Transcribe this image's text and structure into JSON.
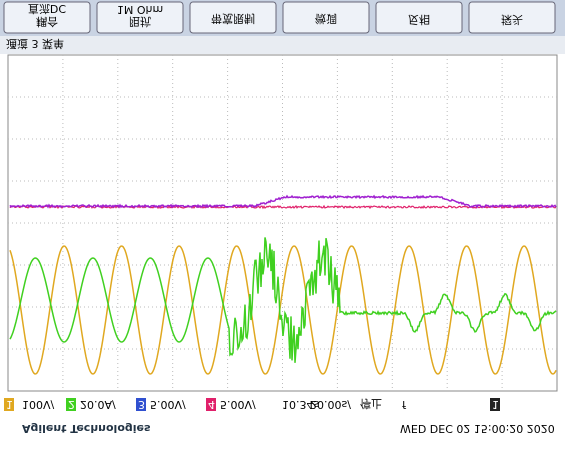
{
  "softkeys": [
    [
      "直流DC",
      "耦合"
    ],
    [
      "1M Ohm",
      "阻抗"
    ],
    [
      "带宽限制"
    ],
    [
      "微调"
    ],
    [
      "反相"
    ],
    [
      "探头"
    ]
  ],
  "status": "通道 3 菜单",
  "bottom_bar": [
    "1",
    "100V/",
    "2",
    "20.0A/",
    "3",
    "5.00V/",
    "4",
    "5.00V/",
    "10.34s",
    "20.00s/",
    "停止",
    "f",
    "1"
  ],
  "footer": {
    "brand": "Agilent Technologies",
    "datetime": "WED DEC 02 15:00:20 2020"
  }
}
